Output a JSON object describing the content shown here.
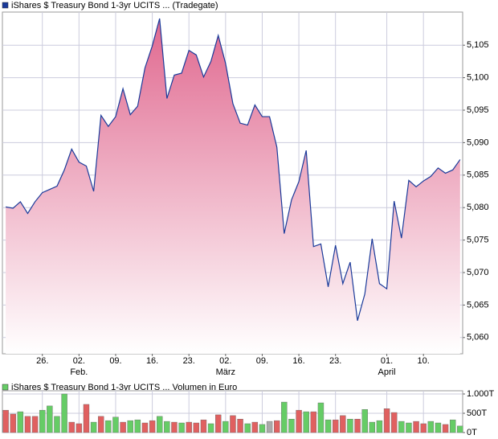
{
  "chart_data": [
    {
      "type": "area",
      "title": "iShares $ Treasury Bond 1-3yr UCITS ... (Tradegate)",
      "color": "#1a3a9a",
      "fill_top": "#e0688f",
      "fill_bottom": "#ffffff",
      "x": [
        0,
        1,
        2,
        3,
        4,
        5,
        6,
        7,
        8,
        9,
        10,
        11,
        12,
        13,
        14,
        15,
        16,
        17,
        18,
        19,
        20,
        21,
        22,
        23,
        24,
        25,
        26,
        27,
        28,
        29,
        30,
        31,
        32,
        33,
        34,
        35,
        36,
        37,
        38,
        39,
        40,
        41,
        42,
        43,
        44,
        45,
        46,
        47,
        48,
        49,
        50,
        51,
        52,
        53,
        54,
        55,
        56,
        57,
        58,
        59,
        60,
        61,
        62
      ],
      "values": [
        5.0801,
        5.0799,
        5.0809,
        5.0791,
        5.0809,
        5.0823,
        5.0828,
        5.0833,
        5.0858,
        5.089,
        5.087,
        5.0864,
        5.0825,
        5.0942,
        5.0925,
        5.094,
        5.0983,
        5.0943,
        5.0956,
        5.1015,
        5.1049,
        5.1091,
        5.0968,
        5.1004,
        5.1007,
        5.1042,
        5.1035,
        5.1001,
        5.1025,
        5.1065,
        5.1022,
        5.096,
        5.093,
        5.0927,
        5.0958,
        5.094,
        5.094,
        5.0893,
        5.076,
        5.0812,
        5.084,
        5.0888,
        5.074,
        5.0744,
        5.0678,
        5.0742,
        5.0683,
        5.0716,
        5.0626,
        5.0667,
        5.0752,
        5.0683,
        5.0675,
        5.081,
        5.0753,
        5.0842,
        5.0832,
        5.0841,
        5.0848,
        5.0861,
        5.0853,
        5.0858,
        5.0874
      ],
      "xlim": [
        -0.45,
        62.35
      ],
      "ylim": [
        5.0575,
        5.1101
      ],
      "xticks": [
        {
          "value": 5,
          "label": "26."
        },
        {
          "value": 10,
          "label": "02."
        },
        {
          "value": 15,
          "label": "09."
        },
        {
          "value": 20,
          "label": "16."
        },
        {
          "value": 25,
          "label": "23."
        },
        {
          "value": 30,
          "label": "02."
        },
        {
          "value": 35,
          "label": "09."
        },
        {
          "value": 40,
          "label": "16."
        },
        {
          "value": 45,
          "label": "23."
        },
        {
          "value": 52,
          "label": "01."
        },
        {
          "value": 57,
          "label": "10."
        }
      ],
      "month_labels": [
        {
          "value": 10,
          "label": "Feb."
        },
        {
          "value": 30,
          "label": "März"
        },
        {
          "value": 52,
          "label": "April"
        }
      ],
      "yticks": [
        {
          "value": 5.06,
          "label": "5,060"
        },
        {
          "value": 5.065,
          "label": "5,065"
        },
        {
          "value": 5.07,
          "label": "5,070"
        },
        {
          "value": 5.075,
          "label": "5,075"
        },
        {
          "value": 5.08,
          "label": "5,080"
        },
        {
          "value": 5.085,
          "label": "5,085"
        },
        {
          "value": 5.09,
          "label": "5,090"
        },
        {
          "value": 5.095,
          "label": "5,095"
        },
        {
          "value": 5.1,
          "label": "5,100"
        },
        {
          "value": 5.105,
          "label": "5,105"
        }
      ],
      "grid": true
    },
    {
      "type": "bar",
      "title": "iShares $ Treasury Bond 1-3yr UCITS ... Volumen in Euro",
      "color": "#66cc66",
      "x": [
        0,
        1,
        2,
        3,
        4,
        5,
        6,
        7,
        8,
        9,
        10,
        11,
        12,
        13,
        14,
        15,
        16,
        17,
        18,
        19,
        20,
        21,
        22,
        23,
        24,
        25,
        26,
        27,
        28,
        29,
        30,
        31,
        32,
        33,
        34,
        35,
        36,
        37,
        38,
        39,
        40,
        41,
        42,
        43,
        44,
        45,
        46,
        47,
        48,
        49,
        50,
        51,
        52,
        53,
        54,
        55,
        56,
        57,
        58,
        59,
        60,
        61,
        62
      ],
      "values": [
        580,
        480,
        540,
        420,
        420,
        580,
        690,
        420,
        1000,
        270,
        230,
        730,
        270,
        420,
        310,
        400,
        270,
        310,
        330,
        250,
        310,
        420,
        290,
        270,
        250,
        270,
        250,
        330,
        230,
        460,
        290,
        440,
        350,
        230,
        270,
        210,
        290,
        310,
        790,
        350,
        580,
        540,
        540,
        770,
        330,
        330,
        440,
        350,
        350,
        600,
        270,
        310,
        620,
        520,
        290,
        250,
        290,
        230,
        290,
        250,
        210,
        330,
        170
      ],
      "bar_colors": [
        "#e06060",
        "#e06060",
        "#66cc66",
        "#e06060",
        "#e06060",
        "#66cc66",
        "#66cc66",
        "#66cc66",
        "#66cc66",
        "#e06060",
        "#e06060",
        "#e06060",
        "#66cc66",
        "#e06060",
        "#66cc66",
        "#66cc66",
        "#e06060",
        "#66cc66",
        "#66cc66",
        "#e06060",
        "#e06060",
        "#66cc66",
        "#66cc66",
        "#e06060",
        "#66cc66",
        "#e06060",
        "#e06060",
        "#e06060",
        "#66cc66",
        "#e06060",
        "#66cc66",
        "#e06060",
        "#e06060",
        "#66cc66",
        "#e06060",
        "#66cc66",
        "#aaaaaa",
        "#e06060",
        "#66cc66",
        "#66cc66",
        "#e06060",
        "#66cc66",
        "#e06060",
        "#66cc66",
        "#66cc66",
        "#e06060",
        "#e06060",
        "#66cc66",
        "#e06060",
        "#66cc66",
        "#66cc66",
        "#66cc66",
        "#e06060",
        "#e06060",
        "#66cc66",
        "#66cc66",
        "#e06060",
        "#e06060",
        "#66cc66",
        "#66cc66",
        "#e06060",
        "#66cc66",
        "#66cc66"
      ],
      "xlim": [
        -0.45,
        62.35
      ],
      "ylim": [
        0,
        1083
      ],
      "yticks": [
        {
          "value": 0,
          "label": "0T"
        },
        {
          "value": 500,
          "label": "500T"
        },
        {
          "value": 1000,
          "label": "1.000T"
        }
      ],
      "grid": true
    }
  ]
}
